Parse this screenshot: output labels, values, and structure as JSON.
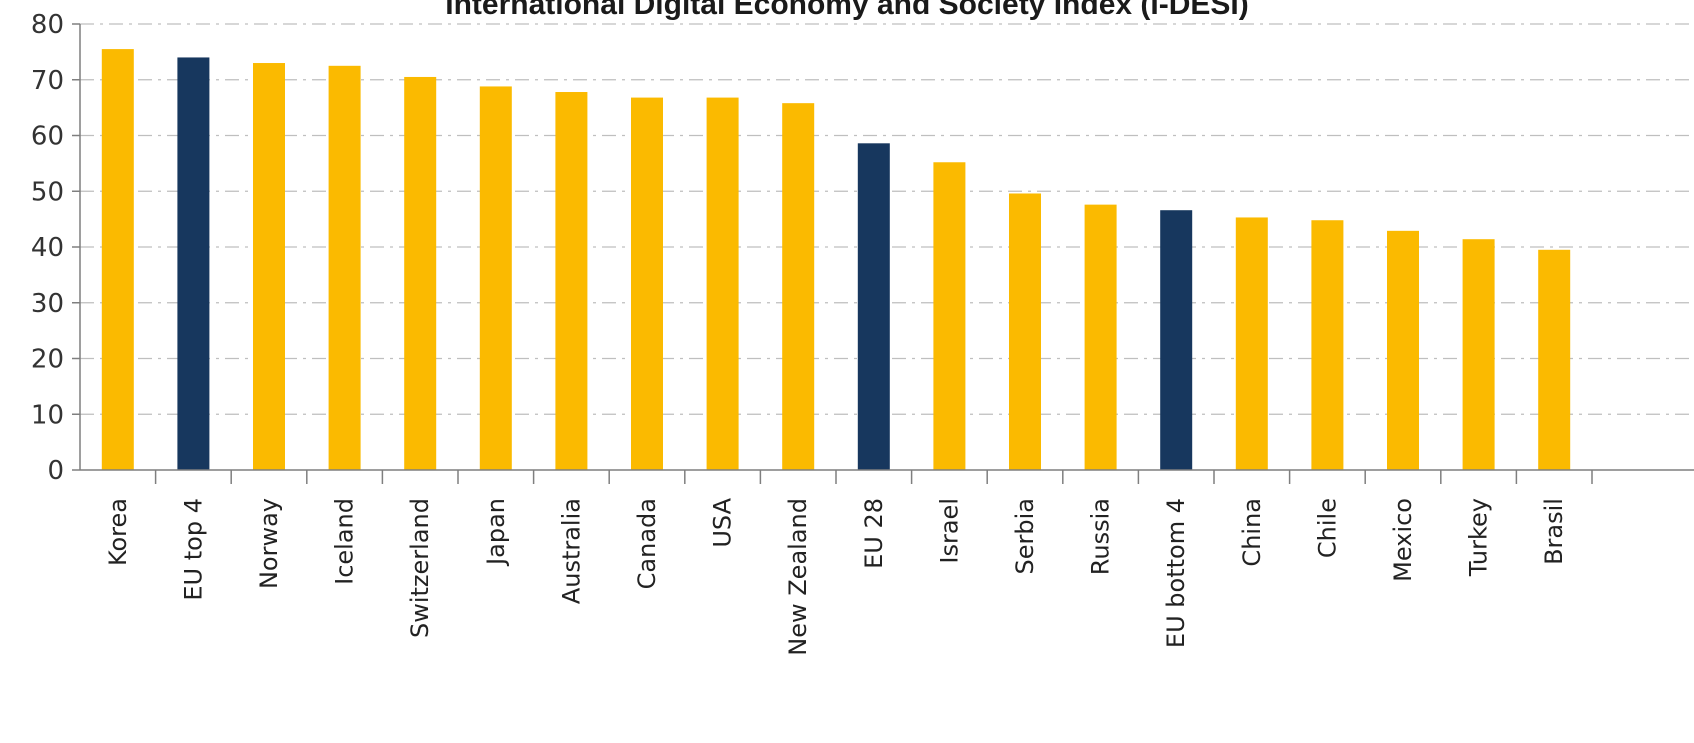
{
  "chart_data": {
    "type": "bar",
    "title": "International Digital Economy and Society Index (I-DESI)",
    "categories": [
      "Korea",
      "EU top 4",
      "Norway",
      "Iceland",
      "Switzerland",
      "Japan",
      "Australia",
      "Canada",
      "USA",
      "New Zealand",
      "EU 28",
      "Israel",
      "Serbia",
      "Russia",
      "EU bottom 4",
      "China",
      "Chile",
      "Mexico",
      "Turkey",
      "Brasil"
    ],
    "values": [
      75.5,
      74,
      73,
      72.5,
      70.5,
      68.8,
      67.8,
      66.8,
      66.8,
      65.8,
      58.6,
      55.2,
      49.6,
      47.6,
      46.6,
      45.3,
      44.8,
      42.9,
      41.4,
      39.5
    ],
    "highlighted": [
      "EU top 4",
      "EU 28",
      "EU bottom 4"
    ],
    "ylim": [
      0,
      80
    ],
    "yticks": [
      0,
      10,
      20,
      30,
      40,
      50,
      60,
      70,
      80
    ],
    "grid": true,
    "colors": {
      "bar": "#FBBA00",
      "highlight": "#17375E",
      "grid": "#BFBFBF",
      "axis": "#7F7F7F"
    }
  }
}
